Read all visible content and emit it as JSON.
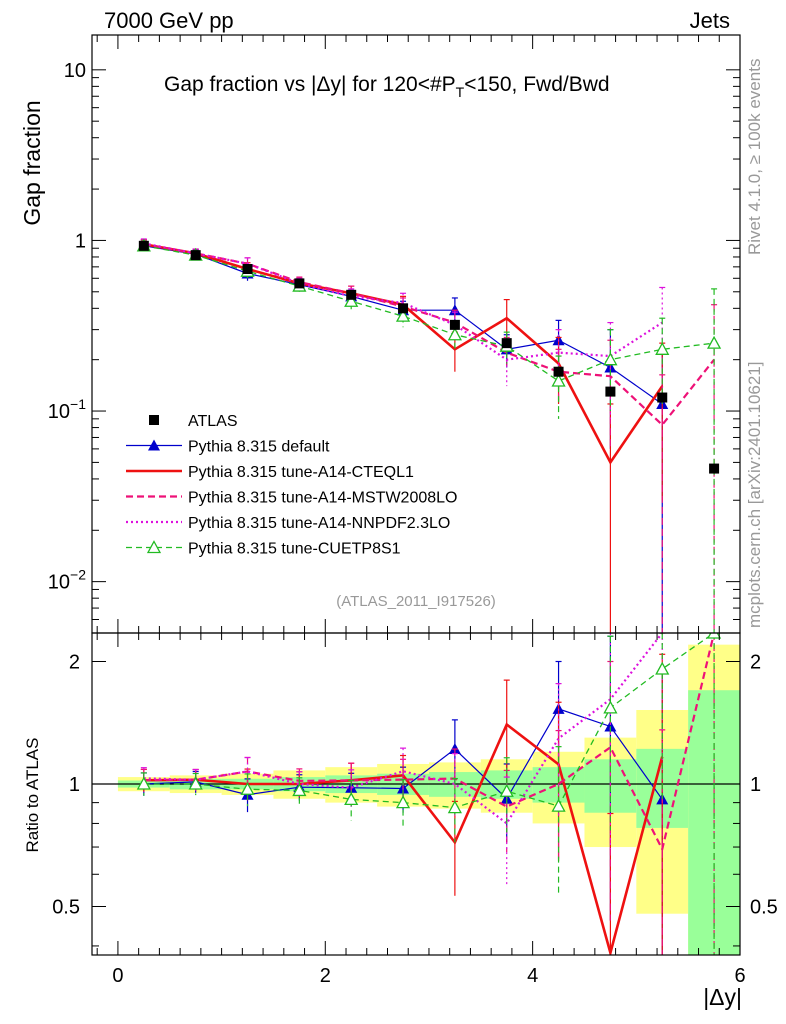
{
  "header": {
    "energy_label": "7000 GeV pp",
    "process_label": "Jets",
    "side_rivet": "Rivet 4.1.0, ≥ 100k events",
    "side_mcplots": "mcplots.cern.ch [arXiv:2401.10621]"
  },
  "colors": {
    "atlas": "#000000",
    "default": "#0000cc",
    "cteql1": "#ee1111",
    "mstw": "#ee1177",
    "nnpdf": "#dd11dd",
    "cuetp8s1": "#22bb22",
    "band_yellow": "#ffff88",
    "band_green": "#99ff99"
  },
  "chart_data": {
    "type": "line",
    "title_text": "Gap fraction vs |Δy| for 120<#P",
    "title_sub": "T",
    "title_tail": "<150, Fwd/Bwd",
    "analysis_id": "(ATLAS_2011_I917526)",
    "xlabel": "|Δy|",
    "ylabel_main": "Gap fraction",
    "ylabel_ratio": "Ratio to ATLAS",
    "xlim": [
      -0.25,
      6.0
    ],
    "ylim_main": [
      0.005,
      16
    ],
    "ylim_ratio": [
      0.38,
      2.35
    ],
    "x_ticks": [
      "0",
      "2",
      "4",
      "6"
    ],
    "main_y_ticks": [
      {
        "base": "10",
        "exp": "",
        "value": 10
      },
      {
        "base": "1",
        "exp": "",
        "value": 1
      },
      {
        "base": "10",
        "exp": "−1",
        "value": 0.1
      },
      {
        "base": "10",
        "exp": "−2",
        "value": 0.01
      }
    ],
    "ratio_y_ticks": [
      "0.5",
      "1",
      "2"
    ],
    "x": [
      0.25,
      0.75,
      1.25,
      1.75,
      2.25,
      2.75,
      3.25,
      3.75,
      4.25,
      4.75,
      5.25,
      5.75
    ],
    "atlas": {
      "name": "ATLAS",
      "values": [
        0.93,
        0.82,
        0.68,
        0.56,
        0.48,
        0.4,
        0.32,
        0.25,
        0.17,
        0.13,
        0.12,
        0.046
      ],
      "band_yellow": [
        [
          0.96,
          1.04
        ],
        [
          0.95,
          1.05
        ],
        [
          0.94,
          1.06
        ],
        [
          0.92,
          1.08
        ],
        [
          0.9,
          1.1
        ],
        [
          0.88,
          1.12
        ],
        [
          0.87,
          1.13
        ],
        [
          0.85,
          1.15
        ],
        [
          0.8,
          1.2
        ],
        [
          0.7,
          1.3
        ],
        [
          0.48,
          1.52
        ],
        [
          0.3,
          2.2
        ]
      ],
      "band_green": [
        [
          0.98,
          1.02
        ],
        [
          0.97,
          1.03
        ],
        [
          0.97,
          1.03
        ],
        [
          0.96,
          1.04
        ],
        [
          0.95,
          1.05
        ],
        [
          0.94,
          1.06
        ],
        [
          0.93,
          1.07
        ],
        [
          0.92,
          1.08
        ],
        [
          0.9,
          1.1
        ],
        [
          0.85,
          1.15
        ],
        [
          0.78,
          1.22
        ],
        [
          0.3,
          1.7
        ]
      ]
    },
    "series": [
      {
        "name": "Pythia 8.315 default",
        "key": "default",
        "values": [
          0.93,
          0.83,
          0.64,
          0.55,
          0.47,
          0.39,
          0.39,
          0.23,
          0.26,
          0.18,
          0.11,
          null
        ],
        "errors": [
          0.06,
          0.05,
          0.06,
          0.04,
          0.04,
          0.05,
          0.07,
          0.05,
          0.08,
          0.12,
          0.12,
          null
        ]
      },
      {
        "name": "Pythia 8.315 tune-A14-CTEQL1",
        "key": "cteql1",
        "values": [
          0.95,
          0.84,
          0.68,
          0.56,
          0.49,
          0.42,
          0.23,
          0.35,
          0.19,
          0.05,
          0.14,
          null
        ],
        "errors": [
          0.06,
          0.05,
          0.06,
          0.04,
          0.05,
          0.05,
          0.06,
          0.1,
          0.08,
          0.06,
          0.11,
          null
        ]
      },
      {
        "name": "Pythia 8.315 tune-A14-MSTW2008LO",
        "key": "mstw",
        "values": [
          0.95,
          0.84,
          0.73,
          0.57,
          0.49,
          0.41,
          0.33,
          0.22,
          0.17,
          0.16,
          0.083,
          0.2
        ],
        "errors": [
          0.06,
          0.05,
          0.06,
          0.04,
          0.05,
          0.05,
          0.06,
          0.05,
          0.06,
          0.1,
          0.08,
          0.22
        ]
      },
      {
        "name": "Pythia 8.315 tune-A14-NNPDF2.3LO",
        "key": "nnpdf",
        "values": [
          0.96,
          0.84,
          0.73,
          0.56,
          0.47,
          0.43,
          0.32,
          0.2,
          0.22,
          0.21,
          0.33,
          null
        ],
        "errors": [
          0.06,
          0.05,
          0.06,
          0.04,
          0.05,
          0.06,
          0.06,
          0.06,
          0.08,
          0.12,
          0.2,
          null
        ]
      },
      {
        "name": "Pythia 8.315 tune-CUETP8S1",
        "key": "cuetp8s1",
        "values": [
          0.93,
          0.82,
          0.66,
          0.54,
          0.44,
          0.36,
          0.28,
          0.24,
          0.15,
          0.2,
          0.23,
          0.25
        ],
        "errors": [
          0.06,
          0.05,
          0.06,
          0.04,
          0.05,
          0.05,
          0.05,
          0.05,
          0.06,
          0.1,
          0.12,
          0.27
        ]
      }
    ]
  }
}
